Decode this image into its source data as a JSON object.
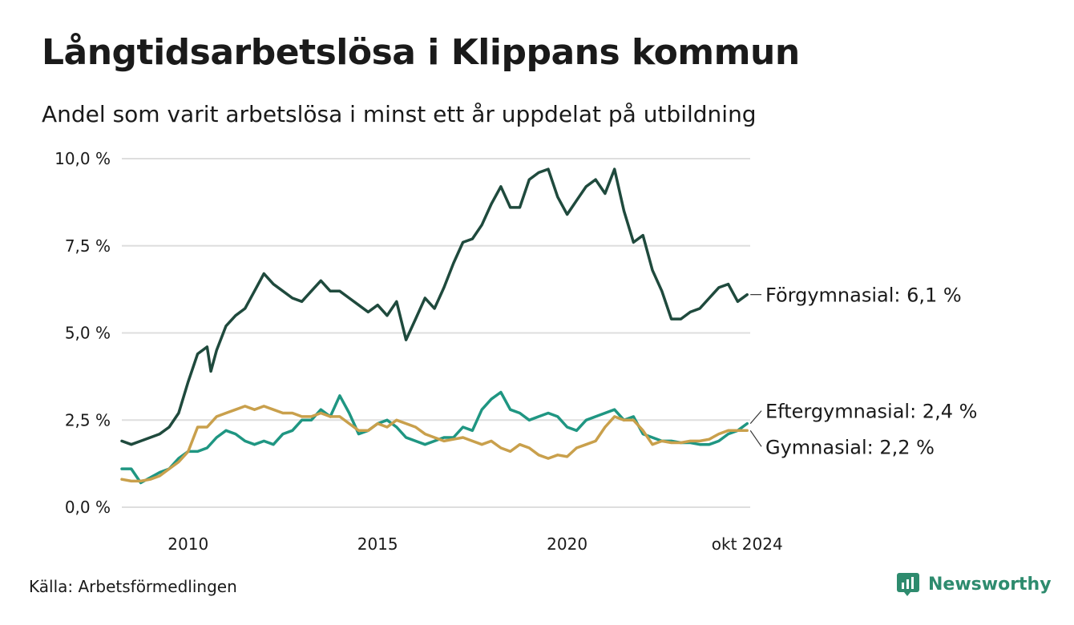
{
  "title": "Långtidsarbetslösa i Klippans kommun",
  "subtitle": "Andel som varit arbetslösa i minst ett år uppdelat på utbildning",
  "source": "Källa: Arbetsförmedlingen",
  "brand": "Newsworthy",
  "chart_data": {
    "type": "line",
    "y_tick_labels": [
      "0,0 %",
      "2,5 %",
      "5,0 %",
      "7,5 %",
      "10,0 %"
    ],
    "y_ticks": [
      0,
      2.5,
      5,
      7.5,
      10
    ],
    "ylim": [
      0,
      10
    ],
    "x_tick_labels": [
      "2010",
      "2015",
      "2020",
      "okt 2024"
    ],
    "x_ticks": [
      2010,
      2015,
      2020,
      2024.75
    ],
    "xlim": [
      2008.25,
      2024.83
    ],
    "grid": true,
    "series": [
      {
        "name": "Förgymnasial",
        "end_label": "Förgymnasial: 6,1 %",
        "color": "#1f4a3d",
        "points": [
          [
            2008.25,
            1.9
          ],
          [
            2008.5,
            1.8
          ],
          [
            2008.75,
            1.9
          ],
          [
            2009.0,
            2.0
          ],
          [
            2009.25,
            2.1
          ],
          [
            2009.5,
            2.3
          ],
          [
            2009.75,
            2.7
          ],
          [
            2010.0,
            3.6
          ],
          [
            2010.25,
            4.4
          ],
          [
            2010.5,
            4.6
          ],
          [
            2010.6,
            3.9
          ],
          [
            2010.75,
            4.5
          ],
          [
            2011.0,
            5.2
          ],
          [
            2011.25,
            5.5
          ],
          [
            2011.5,
            5.7
          ],
          [
            2011.75,
            6.2
          ],
          [
            2012.0,
            6.7
          ],
          [
            2012.25,
            6.4
          ],
          [
            2012.5,
            6.2
          ],
          [
            2012.75,
            6.0
          ],
          [
            2013.0,
            5.9
          ],
          [
            2013.25,
            6.2
          ],
          [
            2013.5,
            6.5
          ],
          [
            2013.75,
            6.2
          ],
          [
            2014.0,
            6.2
          ],
          [
            2014.25,
            6.0
          ],
          [
            2014.5,
            5.8
          ],
          [
            2014.75,
            5.6
          ],
          [
            2015.0,
            5.8
          ],
          [
            2015.25,
            5.5
          ],
          [
            2015.5,
            5.9
          ],
          [
            2015.75,
            4.8
          ],
          [
            2016.0,
            5.4
          ],
          [
            2016.25,
            6.0
          ],
          [
            2016.5,
            5.7
          ],
          [
            2016.75,
            6.3
          ],
          [
            2017.0,
            7.0
          ],
          [
            2017.25,
            7.6
          ],
          [
            2017.5,
            7.7
          ],
          [
            2017.75,
            8.1
          ],
          [
            2018.0,
            8.7
          ],
          [
            2018.25,
            9.2
          ],
          [
            2018.5,
            8.6
          ],
          [
            2018.75,
            8.6
          ],
          [
            2019.0,
            9.4
          ],
          [
            2019.25,
            9.6
          ],
          [
            2019.5,
            9.7
          ],
          [
            2019.75,
            8.9
          ],
          [
            2020.0,
            8.4
          ],
          [
            2020.25,
            8.8
          ],
          [
            2020.5,
            9.2
          ],
          [
            2020.75,
            9.4
          ],
          [
            2021.0,
            9.0
          ],
          [
            2021.25,
            9.7
          ],
          [
            2021.5,
            8.5
          ],
          [
            2021.75,
            7.6
          ],
          [
            2022.0,
            7.8
          ],
          [
            2022.25,
            6.8
          ],
          [
            2022.5,
            6.2
          ],
          [
            2022.75,
            5.4
          ],
          [
            2023.0,
            5.4
          ],
          [
            2023.25,
            5.6
          ],
          [
            2023.5,
            5.7
          ],
          [
            2023.75,
            6.0
          ],
          [
            2024.0,
            6.3
          ],
          [
            2024.25,
            6.4
          ],
          [
            2024.5,
            5.9
          ],
          [
            2024.75,
            6.1
          ]
        ]
      },
      {
        "name": "Eftergymnasial",
        "end_label": "Eftergymnasial: 2,4 %",
        "color": "#1f9682",
        "points": [
          [
            2008.25,
            1.1
          ],
          [
            2008.5,
            1.1
          ],
          [
            2008.75,
            0.7
          ],
          [
            2009.0,
            0.85
          ],
          [
            2009.25,
            1.0
          ],
          [
            2009.5,
            1.1
          ],
          [
            2009.75,
            1.4
          ],
          [
            2010.0,
            1.6
          ],
          [
            2010.25,
            1.6
          ],
          [
            2010.5,
            1.7
          ],
          [
            2010.75,
            2.0
          ],
          [
            2011.0,
            2.2
          ],
          [
            2011.25,
            2.1
          ],
          [
            2011.5,
            1.9
          ],
          [
            2011.75,
            1.8
          ],
          [
            2012.0,
            1.9
          ],
          [
            2012.25,
            1.8
          ],
          [
            2012.5,
            2.1
          ],
          [
            2012.75,
            2.2
          ],
          [
            2013.0,
            2.5
          ],
          [
            2013.25,
            2.5
          ],
          [
            2013.5,
            2.8
          ],
          [
            2013.75,
            2.6
          ],
          [
            2014.0,
            3.2
          ],
          [
            2014.25,
            2.7
          ],
          [
            2014.5,
            2.1
          ],
          [
            2014.75,
            2.2
          ],
          [
            2015.0,
            2.4
          ],
          [
            2015.25,
            2.5
          ],
          [
            2015.5,
            2.3
          ],
          [
            2015.75,
            2.0
          ],
          [
            2016.0,
            1.9
          ],
          [
            2016.25,
            1.8
          ],
          [
            2016.5,
            1.9
          ],
          [
            2016.75,
            2.0
          ],
          [
            2017.0,
            2.0
          ],
          [
            2017.25,
            2.3
          ],
          [
            2017.5,
            2.2
          ],
          [
            2017.75,
            2.8
          ],
          [
            2018.0,
            3.1
          ],
          [
            2018.25,
            3.3
          ],
          [
            2018.5,
            2.8
          ],
          [
            2018.75,
            2.7
          ],
          [
            2019.0,
            2.5
          ],
          [
            2019.25,
            2.6
          ],
          [
            2019.5,
            2.7
          ],
          [
            2019.75,
            2.6
          ],
          [
            2020.0,
            2.3
          ],
          [
            2020.25,
            2.2
          ],
          [
            2020.5,
            2.5
          ],
          [
            2020.75,
            2.6
          ],
          [
            2021.0,
            2.7
          ],
          [
            2021.25,
            2.8
          ],
          [
            2021.5,
            2.5
          ],
          [
            2021.75,
            2.6
          ],
          [
            2022.0,
            2.1
          ],
          [
            2022.25,
            2.0
          ],
          [
            2022.5,
            1.9
          ],
          [
            2022.75,
            1.9
          ],
          [
            2023.0,
            1.85
          ],
          [
            2023.25,
            1.85
          ],
          [
            2023.5,
            1.8
          ],
          [
            2023.75,
            1.8
          ],
          [
            2024.0,
            1.9
          ],
          [
            2024.25,
            2.1
          ],
          [
            2024.5,
            2.2
          ],
          [
            2024.75,
            2.4
          ]
        ]
      },
      {
        "name": "Gymnasial",
        "end_label": "Gymnasial: 2,2 %",
        "color": "#c9a04c",
        "points": [
          [
            2008.25,
            0.8
          ],
          [
            2008.5,
            0.75
          ],
          [
            2008.75,
            0.75
          ],
          [
            2009.0,
            0.8
          ],
          [
            2009.25,
            0.9
          ],
          [
            2009.5,
            1.1
          ],
          [
            2009.75,
            1.3
          ],
          [
            2010.0,
            1.6
          ],
          [
            2010.25,
            2.3
          ],
          [
            2010.5,
            2.3
          ],
          [
            2010.75,
            2.6
          ],
          [
            2011.0,
            2.7
          ],
          [
            2011.25,
            2.8
          ],
          [
            2011.5,
            2.9
          ],
          [
            2011.75,
            2.8
          ],
          [
            2012.0,
            2.9
          ],
          [
            2012.25,
            2.8
          ],
          [
            2012.5,
            2.7
          ],
          [
            2012.75,
            2.7
          ],
          [
            2013.0,
            2.6
          ],
          [
            2013.25,
            2.6
          ],
          [
            2013.5,
            2.7
          ],
          [
            2013.75,
            2.6
          ],
          [
            2014.0,
            2.6
          ],
          [
            2014.25,
            2.4
          ],
          [
            2014.5,
            2.2
          ],
          [
            2014.75,
            2.2
          ],
          [
            2015.0,
            2.4
          ],
          [
            2015.25,
            2.3
          ],
          [
            2015.5,
            2.5
          ],
          [
            2015.75,
            2.4
          ],
          [
            2016.0,
            2.3
          ],
          [
            2016.25,
            2.1
          ],
          [
            2016.5,
            2.0
          ],
          [
            2016.75,
            1.9
          ],
          [
            2017.0,
            1.95
          ],
          [
            2017.25,
            2.0
          ],
          [
            2017.5,
            1.9
          ],
          [
            2017.75,
            1.8
          ],
          [
            2018.0,
            1.9
          ],
          [
            2018.25,
            1.7
          ],
          [
            2018.5,
            1.6
          ],
          [
            2018.75,
            1.8
          ],
          [
            2019.0,
            1.7
          ],
          [
            2019.25,
            1.5
          ],
          [
            2019.5,
            1.4
          ],
          [
            2019.75,
            1.5
          ],
          [
            2020.0,
            1.45
          ],
          [
            2020.25,
            1.7
          ],
          [
            2020.5,
            1.8
          ],
          [
            2020.75,
            1.9
          ],
          [
            2021.0,
            2.3
          ],
          [
            2021.25,
            2.6
          ],
          [
            2021.5,
            2.5
          ],
          [
            2021.75,
            2.5
          ],
          [
            2022.0,
            2.2
          ],
          [
            2022.25,
            1.8
          ],
          [
            2022.5,
            1.9
          ],
          [
            2022.75,
            1.85
          ],
          [
            2023.0,
            1.85
          ],
          [
            2023.25,
            1.9
          ],
          [
            2023.5,
            1.9
          ],
          [
            2023.75,
            1.95
          ],
          [
            2024.0,
            2.1
          ],
          [
            2024.25,
            2.2
          ],
          [
            2024.5,
            2.2
          ],
          [
            2024.75,
            2.2
          ]
        ]
      }
    ]
  }
}
